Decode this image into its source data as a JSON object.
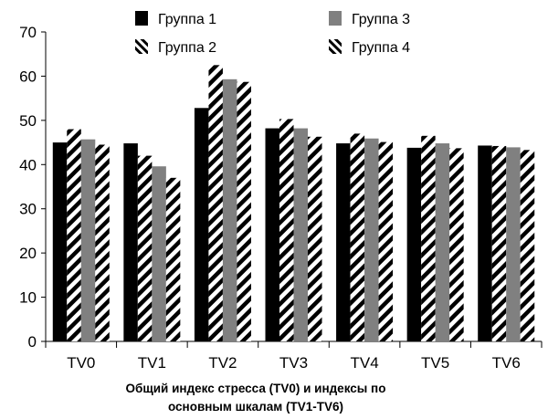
{
  "chart_data": {
    "type": "bar",
    "categories": [
      "TV0",
      "TV1",
      "TV2",
      "TV3",
      "TV4",
      "TV5",
      "TV6"
    ],
    "series": [
      {
        "name": "Группа 1",
        "values": [
          45.0,
          44.8,
          52.8,
          48.2,
          44.8,
          43.8,
          44.3
        ],
        "fill": "solid",
        "color": "#000000"
      },
      {
        "name": "Группа 2",
        "values": [
          48.0,
          42.0,
          62.5,
          50.3,
          47.0,
          46.5,
          44.2
        ],
        "fill": "hatch",
        "color": "#000000"
      },
      {
        "name": "Группа 3",
        "values": [
          45.7,
          39.6,
          59.3,
          48.2,
          45.9,
          44.8,
          43.9
        ],
        "fill": "solid",
        "color": "#808080"
      },
      {
        "name": "Группа 4",
        "values": [
          44.5,
          37.0,
          58.7,
          46.3,
          45.1,
          43.7,
          43.3
        ],
        "fill": "hatch",
        "color": "#000000"
      }
    ],
    "title": "",
    "xlabel_lines": [
      "Общий индекс стресса (TV0) и индексы по",
      "основным шкалам (TV1-TV6)"
    ],
    "ylabel": "",
    "ylim": [
      0,
      70
    ],
    "yticks": [
      0,
      10,
      20,
      30,
      40,
      50,
      60,
      70
    ],
    "grid": false,
    "legend_placement": "top"
  }
}
